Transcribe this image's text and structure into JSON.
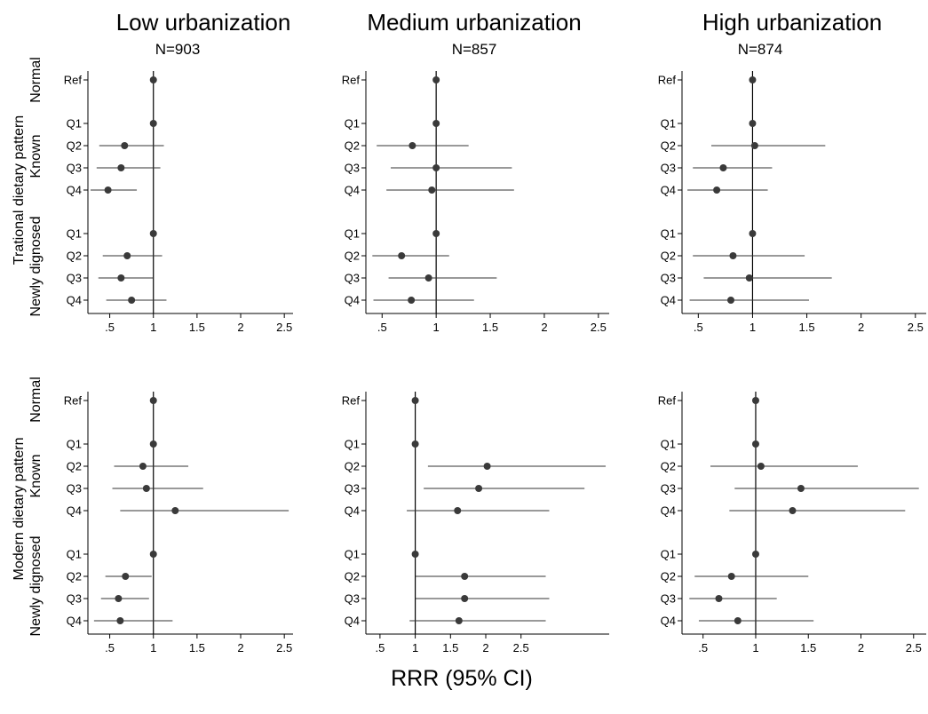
{
  "figure": {
    "xlabel": "RRR (95% CI)",
    "columns": [
      {
        "title": "Low urbanization",
        "n": "N=903"
      },
      {
        "title": "Medium urbanization",
        "n": "N=857"
      },
      {
        "title": "High urbanization",
        "n": "N=874"
      }
    ],
    "rows": [
      {
        "pattern_label": "Trational dietary pattern"
      },
      {
        "pattern_label": "Modern dietary pattern"
      }
    ],
    "groups": [
      {
        "label": "Normal",
        "categories": [
          "Ref"
        ]
      },
      {
        "label": "Known",
        "categories": [
          "Q1",
          "Q2",
          "Q3",
          "Q4"
        ]
      },
      {
        "label": "Newly dignosed",
        "categories": [
          "Q1",
          "Q2",
          "Q3",
          "Q4"
        ]
      }
    ],
    "colors": {
      "point": "#3a3a3a",
      "line": "#333333",
      "refline": "#000000"
    }
  },
  "chart_data": [
    {
      "type": "scatter",
      "subtype": "forest-plot",
      "panel": "Traditional / Low urbanization",
      "xlim": [
        0.25,
        2.6
      ],
      "xticks": [
        0.5,
        1,
        1.5,
        2,
        2.5
      ],
      "xticklabels": [
        ".5",
        "1",
        "1.5",
        "2",
        "2.5"
      ],
      "refline": 1,
      "estimates": [
        1,
        1,
        0.67,
        0.63,
        0.48,
        1,
        0.7,
        0.63,
        0.75
      ],
      "ci_low": [
        null,
        null,
        0.38,
        0.35,
        0.28,
        null,
        0.42,
        0.37,
        0.46
      ],
      "ci_high": [
        null,
        null,
        1.12,
        1.08,
        0.81,
        null,
        1.1,
        1.0,
        1.15
      ]
    },
    {
      "type": "scatter",
      "subtype": "forest-plot",
      "panel": "Traditional / Medium urbanization",
      "xlim": [
        0.35,
        2.6
      ],
      "xticks": [
        0.5,
        1,
        1.5,
        2,
        2.5
      ],
      "xticklabels": [
        ".5",
        "1",
        "1.5",
        "2",
        "2.5"
      ],
      "refline": 1,
      "estimates": [
        1,
        1,
        0.78,
        1.0,
        0.96,
        1,
        0.68,
        0.93,
        0.77
      ],
      "ci_low": [
        null,
        null,
        0.45,
        0.58,
        0.54,
        null,
        0.41,
        0.56,
        0.42
      ],
      "ci_high": [
        null,
        null,
        1.3,
        1.7,
        1.72,
        null,
        1.12,
        1.56,
        1.35
      ]
    },
    {
      "type": "scatter",
      "subtype": "forest-plot",
      "panel": "Traditional / High urbanization",
      "xlim": [
        0.35,
        2.6
      ],
      "xticks": [
        0.5,
        1,
        1.5,
        2,
        2.5
      ],
      "xticklabels": [
        ".5",
        "1",
        "1.5",
        "2",
        "2.5"
      ],
      "refline": 1,
      "estimates": [
        1,
        1,
        1.02,
        0.73,
        0.67,
        1,
        0.82,
        0.97,
        0.8
      ],
      "ci_low": [
        null,
        null,
        0.62,
        0.45,
        0.4,
        null,
        0.45,
        0.55,
        0.42
      ],
      "ci_high": [
        null,
        null,
        1.67,
        1.18,
        1.14,
        null,
        1.48,
        1.73,
        1.52
      ]
    },
    {
      "type": "scatter",
      "subtype": "forest-plot",
      "panel": "Modern / Low urbanization",
      "xlim": [
        0.25,
        2.6
      ],
      "xticks": [
        0.5,
        1,
        1.5,
        2,
        2.5
      ],
      "xticklabels": [
        ".5",
        "1",
        "1.5",
        "2",
        "2.5"
      ],
      "refline": 1,
      "estimates": [
        1,
        1,
        0.88,
        0.92,
        1.25,
        1,
        0.68,
        0.6,
        0.62
      ],
      "ci_low": [
        null,
        null,
        0.55,
        0.53,
        0.62,
        null,
        0.45,
        0.4,
        0.32
      ],
      "ci_high": [
        null,
        null,
        1.4,
        1.57,
        2.55,
        null,
        0.98,
        0.95,
        1.22
      ]
    },
    {
      "type": "scatter",
      "subtype": "forest-plot",
      "panel": "Modern / Medium urbanization",
      "xlim": [
        0.3,
        3.75
      ],
      "xticks": [
        0.5,
        1,
        1.5,
        2,
        2.5
      ],
      "xticklabels": [
        ".5",
        "1",
        "1.5",
        "2",
        "2.5"
      ],
      "refline": 1,
      "estimates": [
        1,
        1,
        2.02,
        1.9,
        1.6,
        1,
        1.7,
        1.7,
        1.62
      ],
      "ci_low": [
        null,
        null,
        1.18,
        1.12,
        0.88,
        null,
        1.0,
        1.0,
        0.92
      ],
      "ci_high": [
        null,
        null,
        3.7,
        3.4,
        2.9,
        null,
        2.85,
        2.9,
        2.85
      ]
    },
    {
      "type": "scatter",
      "subtype": "forest-plot",
      "panel": "Modern / High urbanization",
      "xlim": [
        0.3,
        2.62
      ],
      "xticks": [
        0.5,
        1,
        1.5,
        2,
        2.5
      ],
      "xticklabels": [
        ".5",
        "1",
        "1.5",
        "2",
        "2.5"
      ],
      "refline": 1,
      "estimates": [
        1,
        1,
        1.05,
        1.43,
        1.35,
        1,
        0.77,
        0.65,
        0.83
      ],
      "ci_low": [
        null,
        null,
        0.57,
        0.8,
        0.75,
        null,
        0.42,
        0.37,
        0.46
      ],
      "ci_high": [
        null,
        null,
        1.97,
        2.55,
        2.42,
        null,
        1.5,
        1.2,
        1.55
      ]
    }
  ]
}
